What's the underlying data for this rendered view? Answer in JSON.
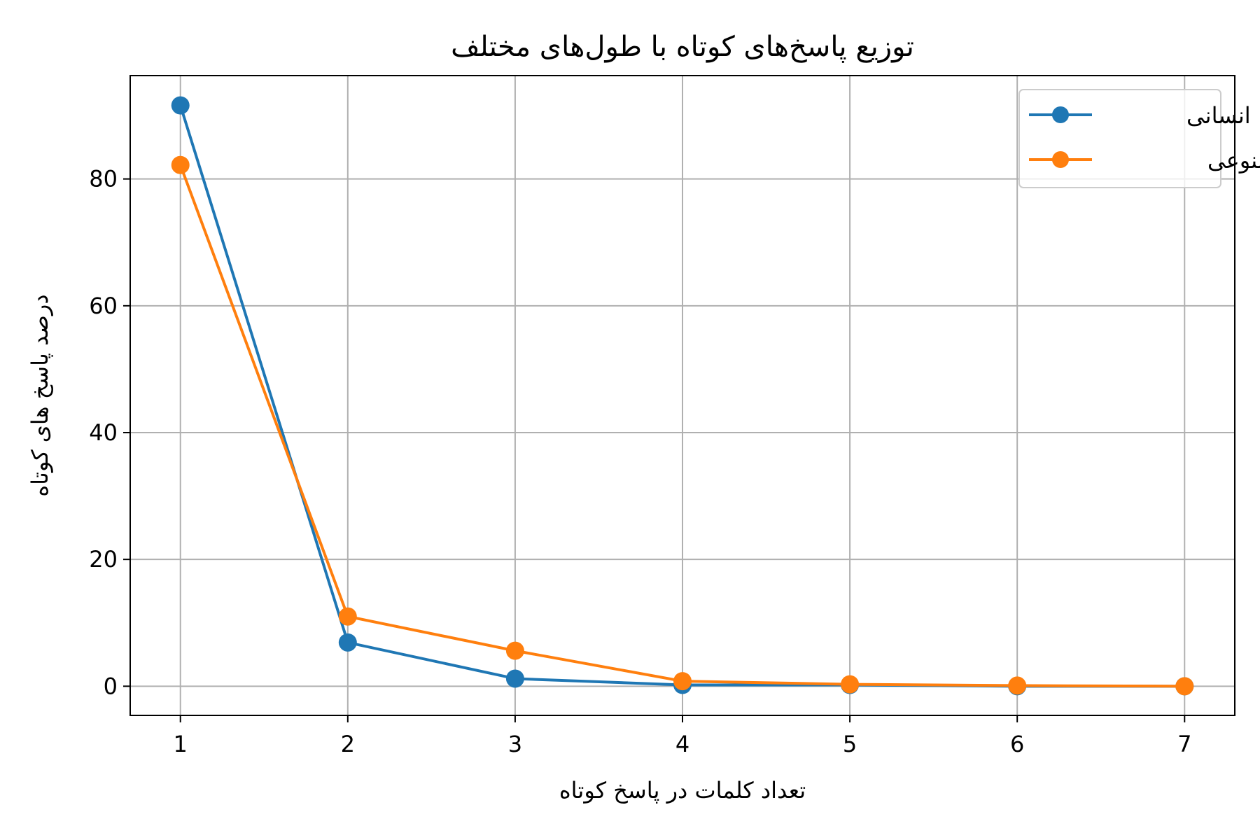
{
  "chart_data": {
    "type": "line",
    "title": "توزیع پاسخ‌های کوتاه با طول‌های مختلف",
    "xlabel": "تعداد کلمات در پاسخ کوتاه",
    "ylabel": "درصد پاسخ های کوتاه",
    "x": [
      1,
      2,
      3,
      4,
      5,
      6,
      7
    ],
    "xlim": [
      0.7,
      7.3
    ],
    "ylim": [
      -4.6,
      96.3
    ],
    "yticks": [
      0,
      20,
      40,
      60,
      80
    ],
    "grid": true,
    "legend_position": "top-right",
    "series": [
      {
        "name": "انسانی",
        "color": "#1f77b4",
        "values": [
          91.6,
          6.9,
          1.2,
          0.2,
          0.2,
          0.0,
          0.0
        ]
      },
      {
        "name": "مصنوعی",
        "color": "#ff7f0e",
        "values": [
          82.2,
          11.0,
          5.6,
          0.8,
          0.3,
          0.1,
          0.0
        ]
      }
    ]
  }
}
